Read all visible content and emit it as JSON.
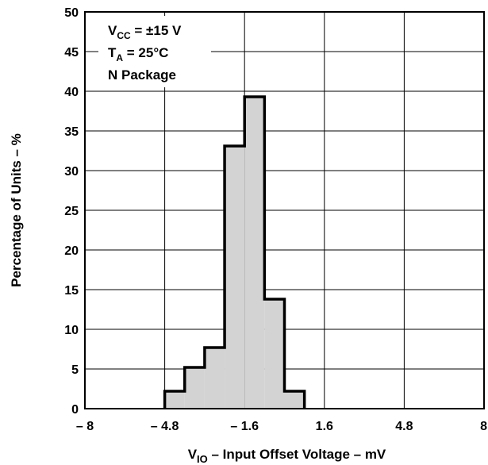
{
  "chart_data": {
    "type": "bar",
    "title": "",
    "xlabel": {
      "symbol": "V",
      "subscript": "IO",
      "text": " – Input Offset Voltage – mV"
    },
    "ylabel": "Percentage of Units – %",
    "xlim": [
      -8,
      8
    ],
    "ylim": [
      0,
      50
    ],
    "xticks": [
      -8,
      -4.8,
      -1.6,
      1.6,
      4.8,
      8
    ],
    "xtick_labels": [
      "– 8",
      "– 4.8",
      "– 1.6",
      "1.6",
      "4.8",
      "8"
    ],
    "yticks": [
      0,
      5,
      10,
      15,
      20,
      25,
      30,
      35,
      40,
      45,
      50
    ],
    "ytick_labels": [
      "0",
      "5",
      "10",
      "15",
      "20",
      "25",
      "30",
      "35",
      "40",
      "45",
      "50"
    ],
    "grid": true,
    "bin_width": 0.8,
    "bins": [
      {
        "x0": -4.8,
        "x1": -4.0,
        "value": 2.2
      },
      {
        "x0": -4.0,
        "x1": -3.2,
        "value": 5.2
      },
      {
        "x0": -3.2,
        "x1": -2.4,
        "value": 7.7
      },
      {
        "x0": -2.4,
        "x1": -1.6,
        "value": 33.1
      },
      {
        "x0": -1.6,
        "x1": -0.8,
        "value": 39.3
      },
      {
        "x0": -0.8,
        "x1": 0.0,
        "value": 13.8
      },
      {
        "x0": 0.0,
        "x1": 0.8,
        "value": 2.2
      }
    ],
    "annotations": [
      {
        "main": "V",
        "sub": "CC",
        "rest": " = ±15 V"
      },
      {
        "main": "T",
        "sub": "A",
        "rest": " = 25°C"
      },
      {
        "main": "N Package",
        "sub": "",
        "rest": ""
      }
    ],
    "colors": {
      "bar_fill": "#d3d3d3",
      "bar_edge": "#000000",
      "grid": "#000000",
      "background": "#ffffff"
    }
  }
}
